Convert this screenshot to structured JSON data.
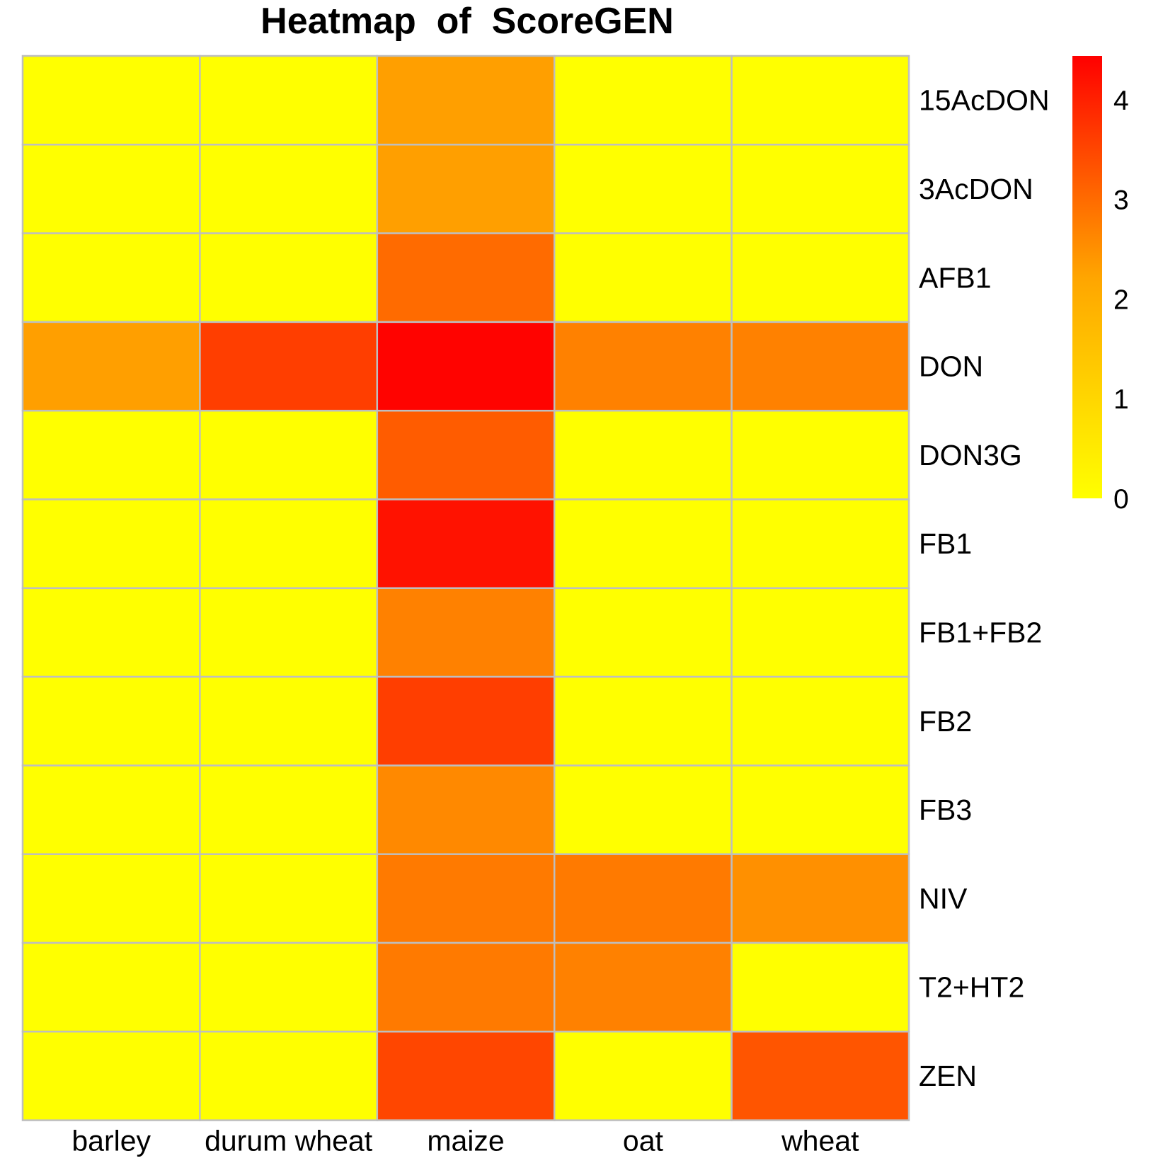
{
  "chart_data": {
    "type": "heatmap",
    "title": "Heatmap  of  ScoreGEN",
    "columns": [
      "barley",
      "durum wheat",
      "maize",
      "oat",
      "wheat"
    ],
    "rows": [
      "15AcDON",
      "3AcDON",
      "AFB1",
      "DON",
      "DON3G",
      "FB1",
      "FB1+FB2",
      "FB2",
      "FB3",
      "NIV",
      "T2+HT2",
      "ZEN"
    ],
    "values": [
      [
        0.0,
        0.0,
        2.3,
        0.0,
        0.0
      ],
      [
        0.0,
        0.0,
        2.3,
        0.0,
        0.0
      ],
      [
        0.0,
        0.0,
        3.0,
        0.0,
        0.0
      ],
      [
        2.3,
        3.6,
        4.4,
        2.7,
        2.7
      ],
      [
        0.0,
        0.0,
        3.2,
        0.0,
        0.0
      ],
      [
        0.0,
        0.0,
        4.2,
        0.0,
        0.0
      ],
      [
        0.0,
        0.0,
        2.7,
        0.0,
        0.0
      ],
      [
        0.0,
        0.0,
        3.6,
        0.0,
        0.0
      ],
      [
        0.0,
        0.0,
        2.6,
        0.0,
        0.0
      ],
      [
        0.0,
        0.0,
        2.8,
        2.8,
        2.5
      ],
      [
        0.0,
        0.0,
        2.8,
        2.7,
        0.0
      ],
      [
        0.0,
        0.0,
        3.5,
        0.0,
        3.3
      ]
    ],
    "color_scale": {
      "min": 0,
      "max": 4.44,
      "colors": [
        "#FFFF00",
        "#FFA500",
        "#FF0000"
      ],
      "ticks": [
        "0",
        "1",
        "2",
        "3",
        "4"
      ],
      "tick_values": [
        0,
        1,
        2,
        3,
        4
      ]
    },
    "legend_placement": "right",
    "cell_border_color": "#BEBEBE"
  }
}
